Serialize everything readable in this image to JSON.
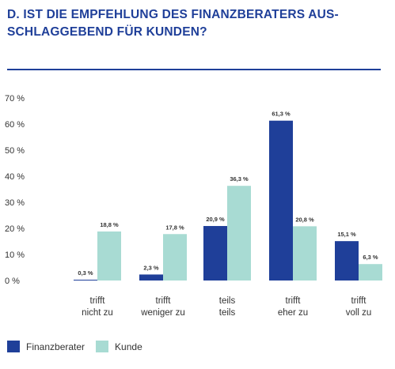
{
  "title_line1": "D. IST DIE EMPFEHLUNG DES FINANZBERATERS AUS-",
  "title_line2": "SCHLAGGEBEND FÜR KUNDEN?",
  "colors": {
    "accent": "#1f3f99",
    "finanzberater": "#1f3f99",
    "kunde": "#a8dbd3"
  },
  "chart_data": {
    "type": "bar",
    "categories": [
      [
        "trifft",
        "nicht zu"
      ],
      [
        "trifft",
        "weniger zu"
      ],
      [
        "teils",
        "teils"
      ],
      [
        "trifft",
        "eher zu"
      ],
      [
        "trifft",
        "voll zu"
      ]
    ],
    "series": [
      {
        "name": "Finanzberater",
        "values": [
          0.3,
          2.3,
          20.9,
          61.3,
          15.1
        ],
        "labels": [
          "0,3 %",
          "2,3 %",
          "20,9 %",
          "61,3 %",
          "15,1 %"
        ]
      },
      {
        "name": "Kunde",
        "values": [
          18.8,
          17.8,
          36.3,
          20.8,
          6.3
        ],
        "labels": [
          "18,8 %",
          "17,8 %",
          "36,3 %",
          "20,8 %",
          "6,3 %"
        ]
      }
    ],
    "yticks": [
      "0 %",
      "10 %",
      "20 %",
      "30 %",
      "40 %",
      "50 %",
      "60 %",
      "70 %"
    ],
    "ylim": [
      0,
      70
    ],
    "legend_position": "bottom-left"
  }
}
